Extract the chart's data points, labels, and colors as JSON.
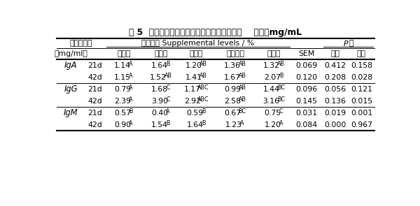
{
  "title": "表 5  葛根总黄酮对肉鸡血清免疫球蛋白的影响    单位：mg/mL",
  "supplemental_header": "添加水平 Supplemental levels / %",
  "p_value_header": "P 值",
  "header2_cols": [
    "（mg/ml）",
    "",
    "对照组",
    "低剂量",
    "中剂量",
    "较高剂量",
    "高剂量",
    "SEM",
    "线性",
    "二次"
  ],
  "rows": [
    [
      "IgA",
      "21d",
      "1.14^A",
      "1.64^B",
      "1.20^AB",
      "1.36^AB",
      "1.32^AB",
      "0.069",
      "0.412",
      "0.158"
    ],
    [
      "",
      "42d",
      "1.15^A",
      "1.52^AB",
      "1.41^AB",
      "1.67^AB",
      "2.07^B",
      "0.120",
      "0.208",
      "0.028"
    ],
    [
      "IgG",
      "21d",
      "0.79^A",
      "1.68^C",
      "1.17^ABC",
      "0.99^AB",
      "1.44^BC",
      "0.096",
      "0.056",
      "0.121"
    ],
    [
      "",
      "42d",
      "2.39^A",
      "3.90^C",
      "2.92^ABC",
      "2.58^AB",
      "3.16^BC",
      "0.145",
      "0.136",
      "0.015"
    ],
    [
      "IgM",
      "21d",
      "0.57^B",
      "0.40^A",
      "0.59^B",
      "0.67^BC",
      "0.75^C",
      "0.031",
      "0.019",
      "0.001"
    ],
    [
      "",
      "42d",
      "0.90^A",
      "1.54^B",
      "1.64^B",
      "1.23^A",
      "1.20^A",
      "0.084",
      "0.000",
      "0.967"
    ]
  ],
  "row_dividers_after": [
    1,
    3
  ],
  "background_color": "#ffffff",
  "text_color": "#000000",
  "fs": 7.8,
  "title_fs": 8.8,
  "col_weights": [
    3.2,
    2.2,
    4.4,
    4.0,
    4.0,
    4.8,
    4.0,
    3.4,
    3.0,
    3.0
  ]
}
